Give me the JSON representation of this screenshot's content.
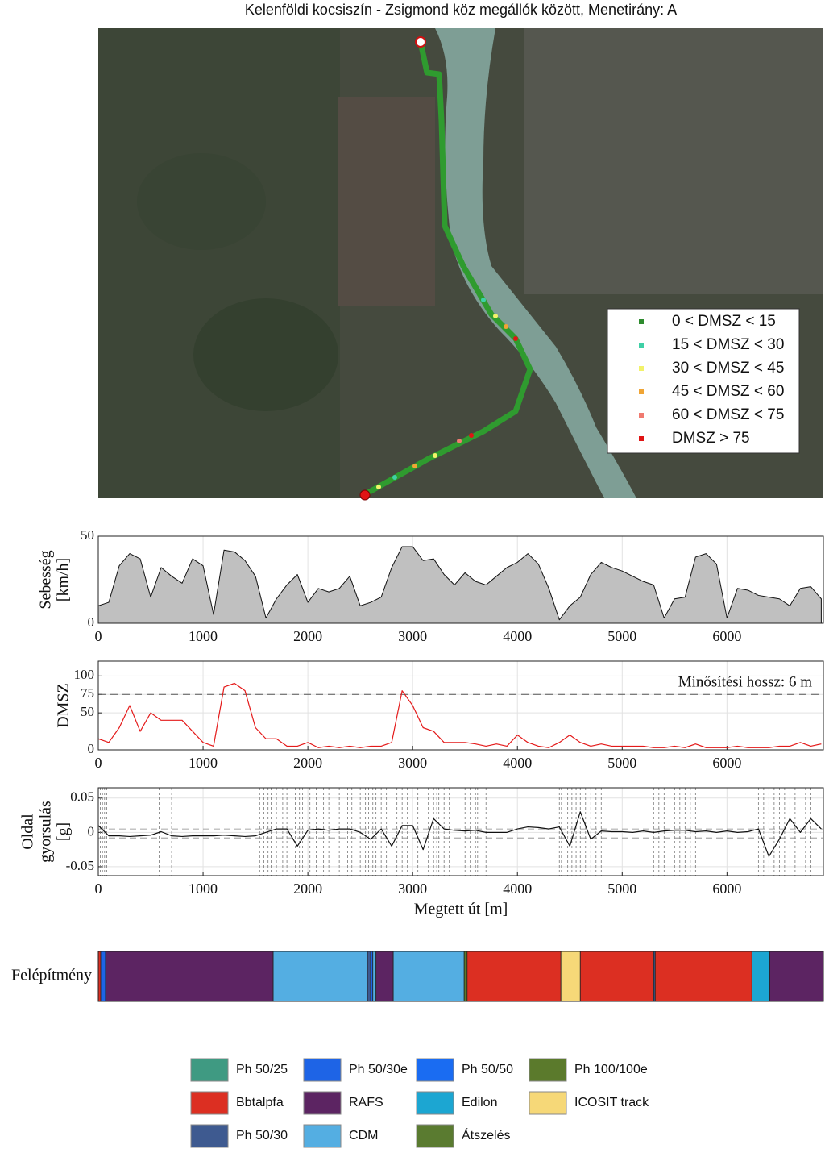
{
  "chart_data": [
    {
      "type": "map",
      "title": "Kelenföldi kocsiszín - Zsigmond köz megállók között, Menetirány:  A",
      "legend": [
        {
          "name": "0 < DMSZ < 15",
          "color": "#2e8b2e"
        },
        {
          "name": "15 < DMSZ < 30",
          "color": "#3fd0a6"
        },
        {
          "name": "30 < DMSZ < 45",
          "color": "#f2f26a"
        },
        {
          "name": "45 < DMSZ < 60",
          "color": "#f0a535"
        },
        {
          "name": "60 < DMSZ < 75",
          "color": "#f07a70"
        },
        {
          "name": "DMSZ > 75",
          "color": "#e01414"
        }
      ]
    },
    {
      "type": "area",
      "ylabel": [
        "Sebesség",
        "[km/h]"
      ],
      "color": "#c0c0c0",
      "grid": true,
      "xlim": [
        0,
        6920
      ],
      "xticks": [
        0,
        1000,
        2000,
        3000,
        4000,
        5000,
        6000
      ],
      "ylim": [
        0,
        50
      ],
      "yticks": [
        0,
        50
      ],
      "x": [
        0,
        100,
        200,
        300,
        400,
        500,
        600,
        700,
        800,
        900,
        1000,
        1100,
        1200,
        1300,
        1400,
        1500,
        1600,
        1700,
        1800,
        1900,
        2000,
        2100,
        2200,
        2300,
        2400,
        2500,
        2600,
        2700,
        2800,
        2900,
        3000,
        3100,
        3200,
        3300,
        3400,
        3500,
        3600,
        3700,
        3800,
        3900,
        4000,
        4100,
        4200,
        4300,
        4400,
        4500,
        4600,
        4700,
        4800,
        4900,
        5000,
        5100,
        5200,
        5300,
        5400,
        5500,
        5600,
        5700,
        5800,
        5900,
        6000,
        6100,
        6200,
        6300,
        6400,
        6500,
        6600,
        6700,
        6800,
        6900
      ],
      "values": [
        10,
        12,
        33,
        40,
        37,
        15,
        32,
        27,
        23,
        37,
        33,
        5,
        42,
        41,
        36,
        27,
        3,
        14,
        22,
        28,
        12,
        20,
        18,
        20,
        27,
        10,
        12,
        15,
        32,
        44,
        44,
        36,
        37,
        28,
        22,
        29,
        24,
        22,
        27,
        32,
        35,
        40,
        34,
        20,
        2,
        10,
        15,
        28,
        35,
        32,
        30,
        27,
        24,
        22,
        3,
        14,
        15,
        38,
        40,
        34,
        3,
        20,
        19,
        16,
        15,
        14,
        10,
        20,
        21,
        14
      ]
    },
    {
      "type": "line",
      "ylabel": [
        "DMSZ"
      ],
      "color": "#e41a1a",
      "grid": true,
      "annotation": "Minősítési hossz: 6 m",
      "threshold": 75,
      "xlim": [
        0,
        6920
      ],
      "xticks": [
        0,
        1000,
        2000,
        3000,
        4000,
        5000,
        6000
      ],
      "ylim": [
        0,
        120
      ],
      "yticks": [
        0,
        50,
        75,
        100
      ],
      "x": [
        0,
        100,
        200,
        300,
        400,
        500,
        600,
        700,
        800,
        900,
        1000,
        1100,
        1200,
        1300,
        1400,
        1500,
        1600,
        1700,
        1800,
        1900,
        2000,
        2100,
        2200,
        2300,
        2400,
        2500,
        2600,
        2700,
        2800,
        2900,
        3000,
        3100,
        3200,
        3300,
        3400,
        3500,
        3600,
        3700,
        3800,
        3900,
        4000,
        4100,
        4200,
        4300,
        4400,
        4500,
        4600,
        4700,
        4800,
        4900,
        5000,
        5100,
        5200,
        5300,
        5400,
        5500,
        5600,
        5700,
        5800,
        5900,
        6000,
        6100,
        6200,
        6300,
        6400,
        6500,
        6600,
        6700,
        6800,
        6900
      ],
      "values": [
        15,
        10,
        30,
        60,
        25,
        50,
        40,
        40,
        40,
        25,
        10,
        5,
        85,
        90,
        80,
        30,
        15,
        15,
        5,
        5,
        10,
        3,
        5,
        3,
        5,
        3,
        5,
        5,
        10,
        80,
        60,
        30,
        25,
        10,
        10,
        10,
        8,
        5,
        8,
        5,
        20,
        10,
        5,
        3,
        10,
        20,
        10,
        5,
        8,
        5,
        5,
        5,
        5,
        3,
        3,
        5,
        3,
        8,
        3,
        3,
        3,
        5,
        3,
        3,
        3,
        5,
        5,
        10,
        5,
        8
      ]
    },
    {
      "type": "line",
      "ylabel": [
        "Oldal",
        "gyorsulás",
        "[g]"
      ],
      "xlabel": "Megtett út [m]",
      "color": "#111111",
      "grid": true,
      "ref_lines": [
        0.005,
        -0.008
      ],
      "vlines": [
        20,
        40,
        60,
        80,
        580,
        700,
        1540,
        1580,
        1620,
        1650,
        1700,
        1760,
        1800,
        1850,
        1880,
        1920,
        1950,
        2020,
        2050,
        2080,
        2150,
        2200,
        2300,
        2380,
        2420,
        2500,
        2550,
        2580,
        2620,
        2650,
        2700,
        2750,
        2850,
        2900,
        2950,
        3050,
        3150,
        3200,
        3230,
        3250,
        3300,
        3350,
        3500,
        3550,
        3600,
        3620,
        3700,
        4400,
        4420,
        4480,
        4520,
        4560,
        4600,
        4650,
        4700,
        4750,
        4800,
        5300,
        5350,
        5400,
        5500,
        5550,
        5600,
        5650,
        5700,
        6300,
        6350,
        6400,
        6450,
        6500,
        6550,
        6600,
        6650,
        6750,
        6800
      ],
      "xlim": [
        0,
        6920
      ],
      "xticks": [
        0,
        1000,
        2000,
        3000,
        4000,
        5000,
        6000
      ],
      "ylim": [
        -0.063,
        0.065
      ],
      "yticks": [
        -0.05,
        0,
        0.05
      ],
      "x": [
        0,
        100,
        200,
        300,
        400,
        500,
        600,
        700,
        800,
        900,
        1000,
        1100,
        1200,
        1300,
        1400,
        1500,
        1600,
        1700,
        1800,
        1900,
        2000,
        2100,
        2200,
        2300,
        2400,
        2500,
        2600,
        2700,
        2800,
        2900,
        3000,
        3100,
        3200,
        3300,
        3400,
        3500,
        3600,
        3700,
        3800,
        3900,
        4000,
        4100,
        4200,
        4300,
        4400,
        4500,
        4600,
        4700,
        4800,
        4900,
        5000,
        5100,
        5200,
        5300,
        5400,
        5500,
        5600,
        5700,
        5800,
        5900,
        6000,
        6100,
        6200,
        6300,
        6400,
        6500,
        6600,
        6700,
        6800,
        6900
      ],
      "values": [
        0.01,
        -0.005,
        -0.005,
        -0.006,
        -0.005,
        -0.004,
        0.001,
        -0.005,
        -0.006,
        -0.005,
        -0.005,
        -0.005,
        -0.004,
        -0.005,
        -0.006,
        -0.005,
        0,
        0.005,
        0.005,
        -0.02,
        0.003,
        0.005,
        0.003,
        0.005,
        0.005,
        0,
        -0.01,
        0.005,
        -0.02,
        0.01,
        0.01,
        -0.025,
        0.02,
        0.005,
        0.003,
        0.002,
        0.003,
        0,
        0,
        0,
        0.005,
        0.008,
        0.007,
        0.005,
        0.008,
        -0.02,
        0.03,
        -0.01,
        0.002,
        0.001,
        0.001,
        0,
        0.002,
        0,
        0.002,
        0.003,
        0.003,
        0.001,
        0.002,
        0,
        0.002,
        0,
        0.001,
        0.005,
        -0.035,
        -0.01,
        0.02,
        0,
        0.02,
        0.005
      ]
    },
    {
      "type": "segments",
      "ylabel": "Felépítmény",
      "xlim": [
        0,
        6920
      ],
      "legend": [
        {
          "name": "Ph 50/25",
          "color": "#3f9a82"
        },
        {
          "name": "Ph 50/30e",
          "color": "#1e64e6"
        },
        {
          "name": "Ph 50/50",
          "color": "#1a6cf2"
        },
        {
          "name": "Ph 100/100e",
          "color": "#5b7a2c"
        },
        {
          "name": "Bbtalpfa",
          "color": "#dc2f22"
        },
        {
          "name": "RAFS",
          "color": "#5c2462"
        },
        {
          "name": "Edilon",
          "color": "#1ca6d2"
        },
        {
          "name": "ICOSIT track",
          "color": "#f6d878"
        },
        {
          "name": "Ph 50/30",
          "color": "#3e5a90"
        },
        {
          "name": "CDM",
          "color": "#54aee2"
        },
        {
          "name": "Átszelés",
          "color": "#5a7b30"
        }
      ],
      "segments": [
        {
          "name": "Bbtalpfa",
          "start": 0,
          "end": 23
        },
        {
          "name": "Ph 50/30e",
          "start": 23,
          "end": 69
        },
        {
          "name": "RAFS",
          "start": 69,
          "end": 1669
        },
        {
          "name": "CDM",
          "start": 1669,
          "end": 2569
        },
        {
          "name": "Ph 50/30",
          "start": 2569,
          "end": 2600
        },
        {
          "name": "Ph 50/30e",
          "start": 2600,
          "end": 2620
        },
        {
          "name": "CDM",
          "start": 2620,
          "end": 2650
        },
        {
          "name": "RAFS",
          "start": 2650,
          "end": 2815
        },
        {
          "name": "CDM",
          "start": 2815,
          "end": 3492
        },
        {
          "name": "Ph 100/100e",
          "start": 3492,
          "end": 3520
        },
        {
          "name": "Bbtalpfa",
          "start": 3520,
          "end": 4415
        },
        {
          "name": "ICOSIT track",
          "start": 4415,
          "end": 4600
        },
        {
          "name": "Bbtalpfa",
          "start": 4600,
          "end": 5300
        },
        {
          "name": "Ph 50/30",
          "start": 5300,
          "end": 5315
        },
        {
          "name": "Bbtalpfa",
          "start": 5315,
          "end": 6238
        },
        {
          "name": "Edilon",
          "start": 6238,
          "end": 6408
        },
        {
          "name": "RAFS",
          "start": 6408,
          "end": 6920
        }
      ]
    }
  ]
}
